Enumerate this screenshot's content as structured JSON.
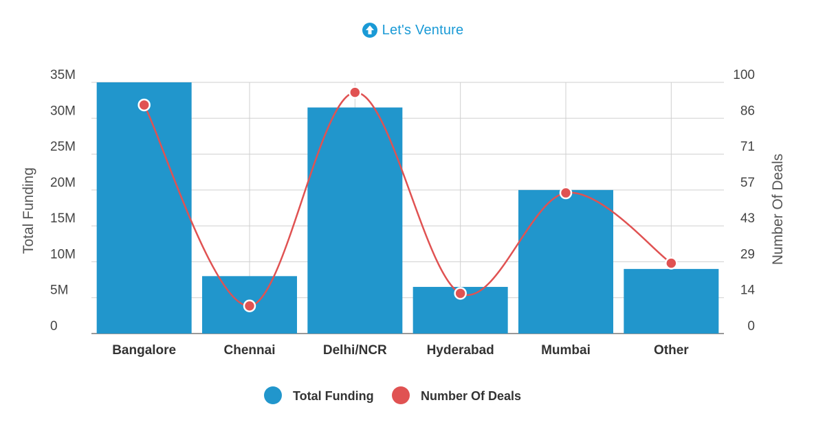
{
  "brand": {
    "logo_text": "Let's Venture",
    "logo_icon": "up-arrow-circle-icon",
    "color": "#1a9ad6"
  },
  "chart_data": {
    "type": "bar",
    "categories": [
      "Bangalore",
      "Chennai",
      "Delhi/NCR",
      "Hyderabad",
      "Mumbai",
      "Other"
    ],
    "series": [
      {
        "name": "Total Funding",
        "type": "bar",
        "axis": "left",
        "color": "#2196cc",
        "values": [
          35,
          8,
          31.5,
          6.5,
          20,
          9
        ]
      },
      {
        "name": "Number Of Deals",
        "type": "line",
        "axis": "right",
        "color": "#e05252",
        "values": [
          91,
          11,
          96,
          16,
          56,
          28
        ]
      }
    ],
    "y_left": {
      "label": "Total Funding",
      "ylim": [
        0,
        35
      ],
      "ticks": [
        0,
        5,
        10,
        15,
        20,
        25,
        30,
        35
      ],
      "tick_labels": [
        "0",
        "5M",
        "10M",
        "15M",
        "20M",
        "25M",
        "30M",
        "35M"
      ]
    },
    "y_right": {
      "label": "Number Of Deals",
      "ylim": [
        0,
        100
      ],
      "tick_labels": [
        "0",
        "14",
        "29",
        "43",
        "57",
        "71",
        "86",
        "100"
      ]
    },
    "grid": true,
    "legend": "bottom-center"
  }
}
